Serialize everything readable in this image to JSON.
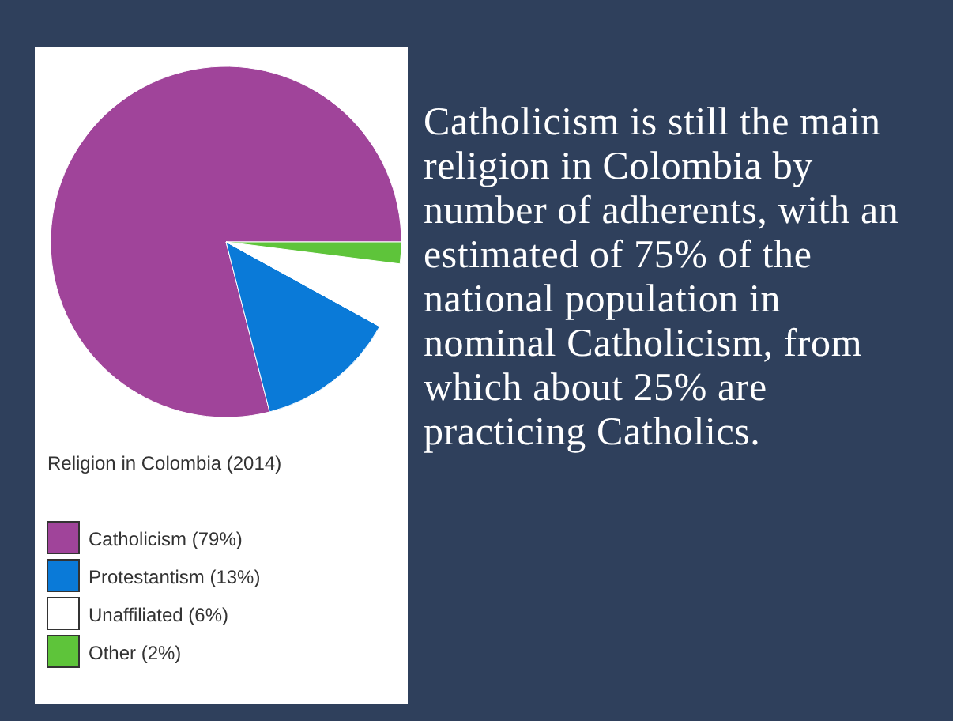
{
  "chart_data": {
    "type": "pie",
    "title": "Religion in Colombia (2014)",
    "categories": [
      "Catholicism (79%)",
      "Protestantism (13%)",
      "Unaffiliated (6%)",
      "Other (2%)"
    ],
    "values": [
      79,
      13,
      6,
      2
    ],
    "colors": [
      "#a0449a",
      "#0a7ad8",
      "#ffffff",
      "#5ec43a"
    ],
    "legend": "bottom",
    "annotations": [
      "Catholicism is still the main religion in Colombia by number of adherents, with an estimated of 75% of the national population in nominal Catholicism, from which about 25% are practicing Catholics."
    ]
  }
}
